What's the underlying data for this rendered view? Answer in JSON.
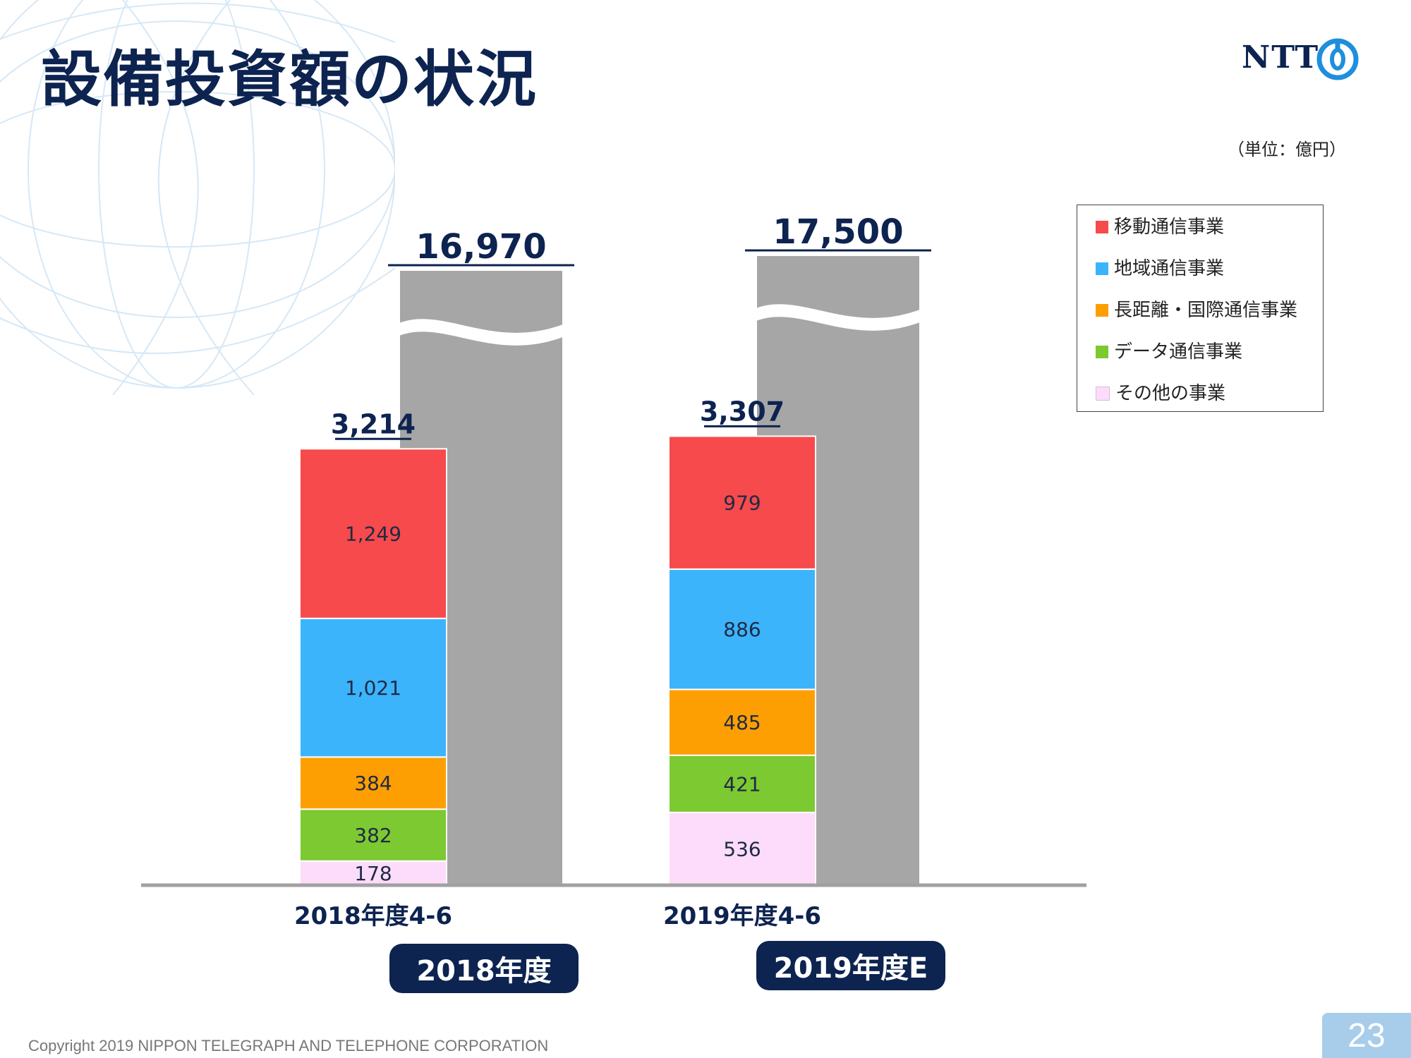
{
  "title": "設備投資額の状況",
  "logo": {
    "text": "NTT",
    "icon": "ntt-logo-icon"
  },
  "unit": "（単位：億円）",
  "legend": [
    {
      "label": "移動通信事業",
      "color": "#f64a4c"
    },
    {
      "label": "地域通信事業",
      "color": "#3cb4fc"
    },
    {
      "label": "長距離・国際通信事業",
      "color": "#fd9f03"
    },
    {
      "label": "データ通信事業",
      "color": "#7cc931"
    },
    {
      "label": "その他の事業",
      "color": "#fcdcfa"
    }
  ],
  "fy_badges": [
    "2018年度",
    "2019年度E"
  ],
  "copyright": "Copyright 2019 NIPPON TELEGRAPH AND TELEPHONE CORPORATION",
  "page_number": "23",
  "chart_data": {
    "type": "bar",
    "stacked": true,
    "categories": [
      "2018年度4-6",
      "2019年度4-6"
    ],
    "series": [
      {
        "name": "移動通信事業",
        "values": [
          1249,
          979
        ]
      },
      {
        "name": "地域通信事業",
        "values": [
          1021,
          886
        ]
      },
      {
        "name": "長距離・国際通信事業",
        "values": [
          384,
          485
        ]
      },
      {
        "name": "データ通信事業",
        "values": [
          382,
          421
        ]
      },
      {
        "name": "その他の事業",
        "values": [
          178,
          536
        ]
      }
    ],
    "value_labels": [
      [
        "1,249",
        "979"
      ],
      [
        "1,021",
        "886"
      ],
      [
        "384",
        "485"
      ],
      [
        "382",
        "421"
      ],
      [
        "178",
        "536"
      ]
    ],
    "totals": [
      3214,
      3307
    ],
    "total_labels": [
      "3,214",
      "3,307"
    ],
    "annual": {
      "labels": [
        "2018年度",
        "2019年度E"
      ],
      "values": [
        16970,
        17500
      ],
      "value_labels": [
        "16,970",
        "17,500"
      ],
      "color": "#a6a6a6",
      "broken_axis": true
    },
    "title": "設備投資額の状況",
    "ylabel": "（単位：億円）",
    "legend_position": "top-right"
  }
}
